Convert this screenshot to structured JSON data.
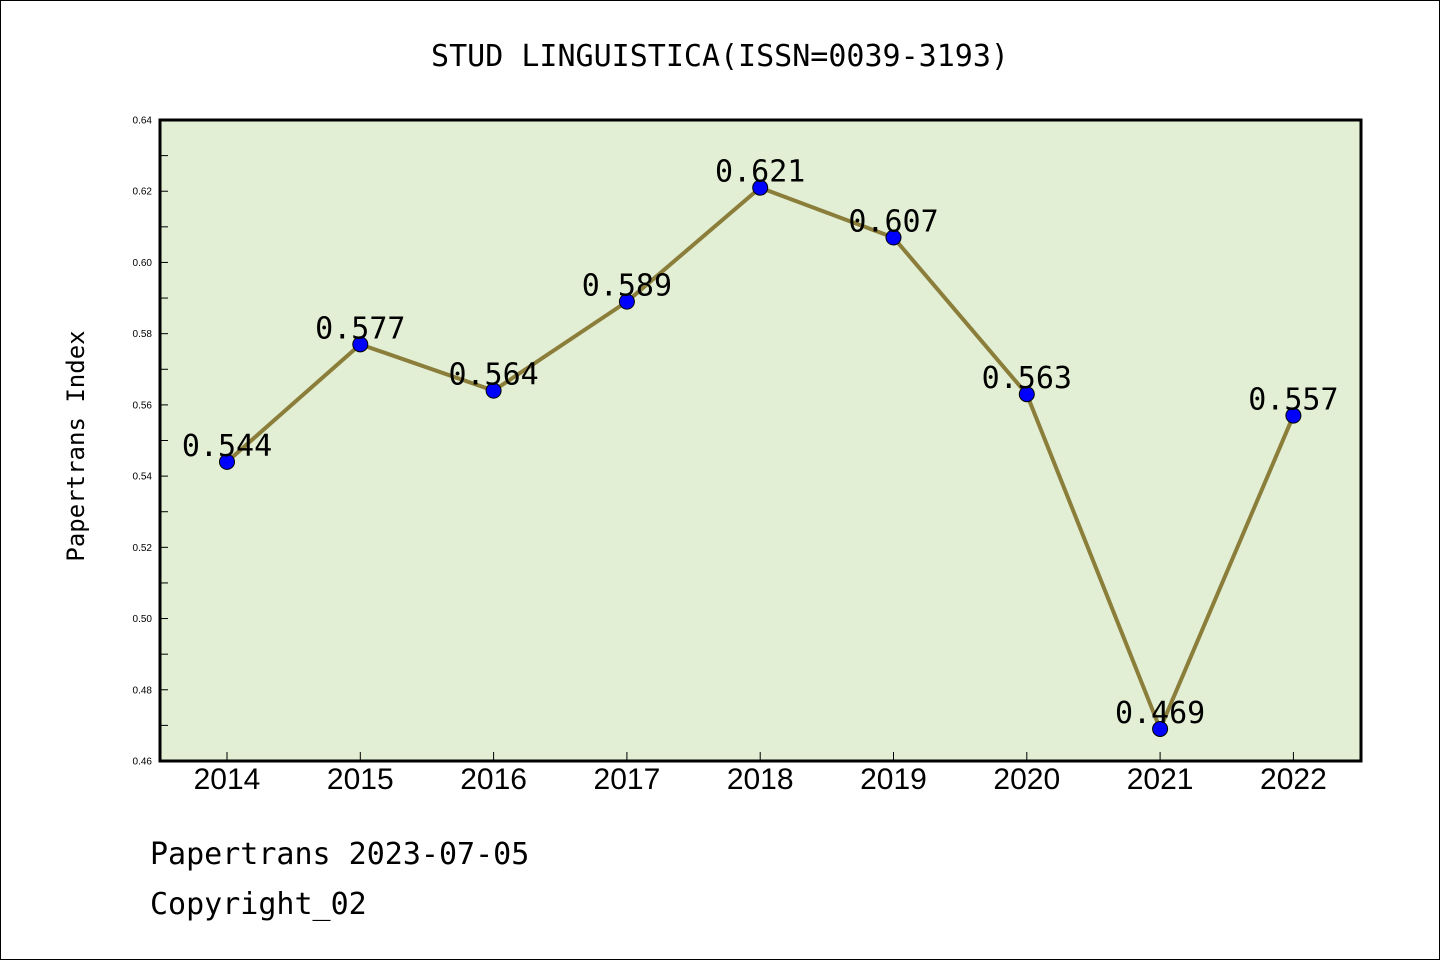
{
  "chart_data": {
    "type": "line",
    "title": "STUD LINGUISTICA(ISSN=0039-3193)",
    "xlabel": "",
    "ylabel": "Papertrans Index",
    "categories": [
      "2014",
      "2015",
      "2016",
      "2017",
      "2018",
      "2019",
      "2020",
      "2021",
      "2022"
    ],
    "series": [
      {
        "values": [
          0.544,
          0.577,
          0.564,
          0.589,
          0.621,
          0.607,
          0.563,
          0.469,
          0.557
        ],
        "labels": [
          "0.544",
          "0.577",
          "0.564",
          "0.589",
          "0.621",
          "0.607",
          "0.563",
          "0.469",
          "0.557"
        ],
        "line_color": "#8b7d3a",
        "marker_color": "#0000ff"
      }
    ],
    "ylim": [
      0.46,
      0.64
    ],
    "yticks": [
      "0.46",
      "0.48",
      "0.50",
      "0.52",
      "0.54",
      "0.56",
      "0.58",
      "0.60",
      "0.62",
      "0.64"
    ],
    "ytick_values": [
      0.46,
      0.48,
      0.5,
      0.52,
      0.54,
      0.56,
      0.58,
      0.6,
      0.62,
      0.64
    ],
    "plot_background": "#e2efd4",
    "grid": false
  },
  "footer": {
    "line1": "Papertrans 2023-07-05",
    "line2": "Copyright_02"
  }
}
